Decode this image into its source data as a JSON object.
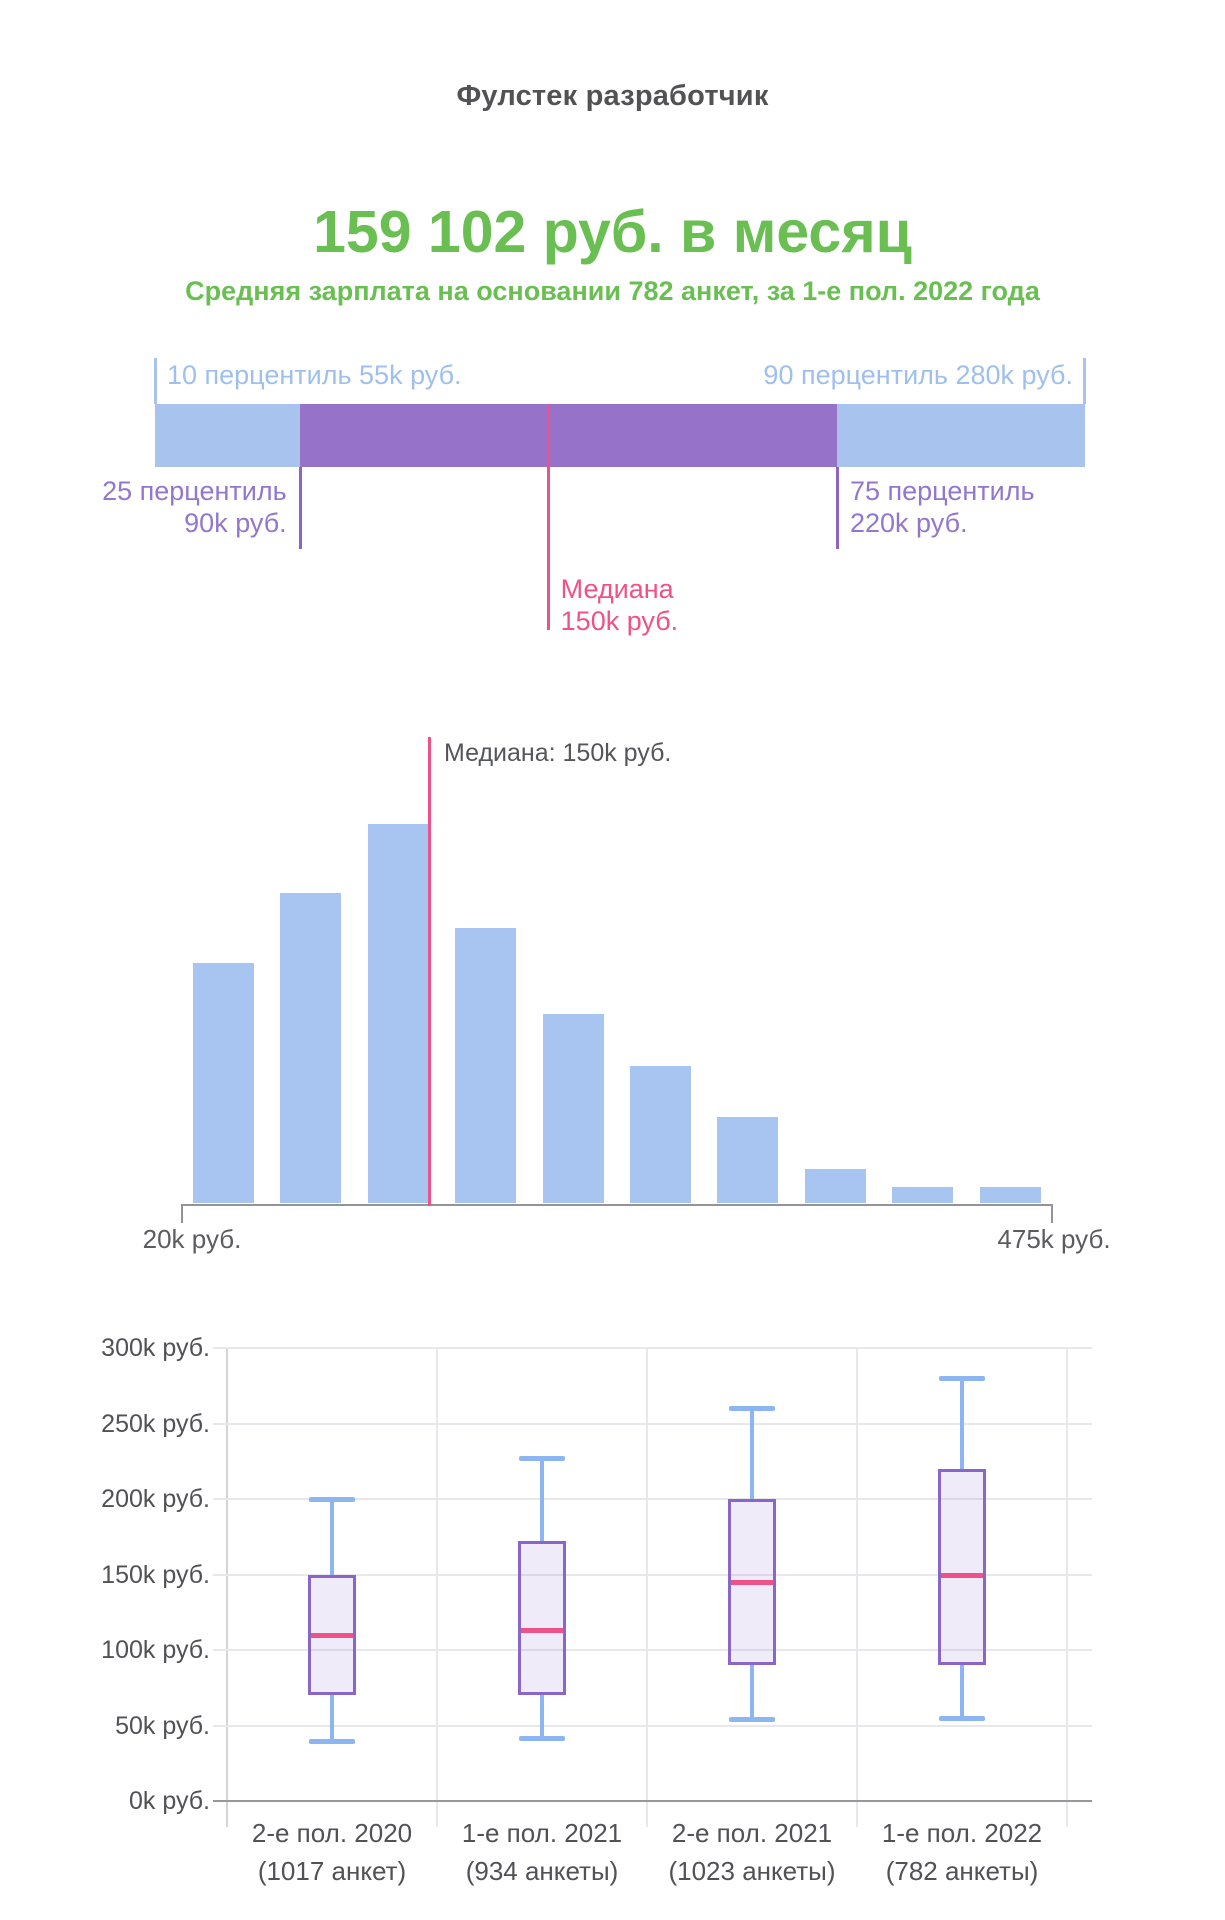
{
  "header": {
    "title": "Фулстек разработчик"
  },
  "summary": {
    "amount": "159 102 руб. в месяц",
    "subtitle": "Средняя зарплата на основании 782 анкет, за 1-е пол. 2022 года"
  },
  "colors": {
    "green": "#6abf52",
    "blue_bar": "#a9c3ef",
    "blue_text": "#9fc0ee",
    "purple_band": "#9673c8",
    "purple_text": "#9376ce",
    "pink": "#ef5288",
    "gray_text": "#55565a",
    "grid": "#e8e8ec",
    "axis": "#97979c"
  },
  "chart_data": [
    {
      "type": "area",
      "subtype": "percentile-band",
      "unit": "k руб.",
      "axis_range": [
        55,
        280
      ],
      "points": {
        "p10": 55,
        "p25": 90,
        "median": 150,
        "p75": 220,
        "p90": 280
      },
      "labels": {
        "p10": "10 перцентиль 55k руб.",
        "p90": "90 перцентиль 280k руб.",
        "p25_line1": "25 перцентиль",
        "p25_line2": "90k руб.",
        "p75_line1": "75 перцентиль",
        "p75_line2": "220k руб.",
        "median_line1": "Медиана",
        "median_line2": "150k руб."
      }
    },
    {
      "type": "bar",
      "subtype": "histogram",
      "x_min_label": "20k руб.",
      "x_max_label": "475k руб.",
      "bins_range_k_rub": [
        20,
        475
      ],
      "median_annotation": "Медиана: 150k руб.",
      "median_value": 150,
      "relative_heights": [
        0.633,
        0.818,
        1.0,
        0.726,
        0.499,
        0.361,
        0.227,
        0.09,
        0.042,
        0.042
      ]
    },
    {
      "type": "boxplot",
      "ylabel_ticks": [
        "300k руб.",
        "250k руб.",
        "200k руб.",
        "150k руб.",
        "100k руб.",
        "50k руб.",
        "0k руб."
      ],
      "y_tick_values": [
        300,
        250,
        200,
        150,
        100,
        50,
        0
      ],
      "ylim": [
        0,
        300
      ],
      "grid": true,
      "categories": [
        {
          "period": "2-е пол. 2020",
          "surveys": "(1017 анкет)",
          "p10": 40,
          "p25": 70,
          "median": 110,
          "p75": 150,
          "p90": 200
        },
        {
          "period": "1-е пол. 2021",
          "surveys": "(934 анкеты)",
          "p10": 42,
          "p25": 70,
          "median": 113,
          "p75": 172,
          "p90": 227
        },
        {
          "period": "2-е пол. 2021",
          "surveys": "(1023 анкеты)",
          "p10": 54,
          "p25": 90,
          "median": 145,
          "p75": 200,
          "p90": 260
        },
        {
          "period": "1-е пол. 2022",
          "surveys": "(782 анкеты)",
          "p10": 55,
          "p25": 90,
          "median": 150,
          "p75": 220,
          "p90": 280
        }
      ]
    }
  ]
}
